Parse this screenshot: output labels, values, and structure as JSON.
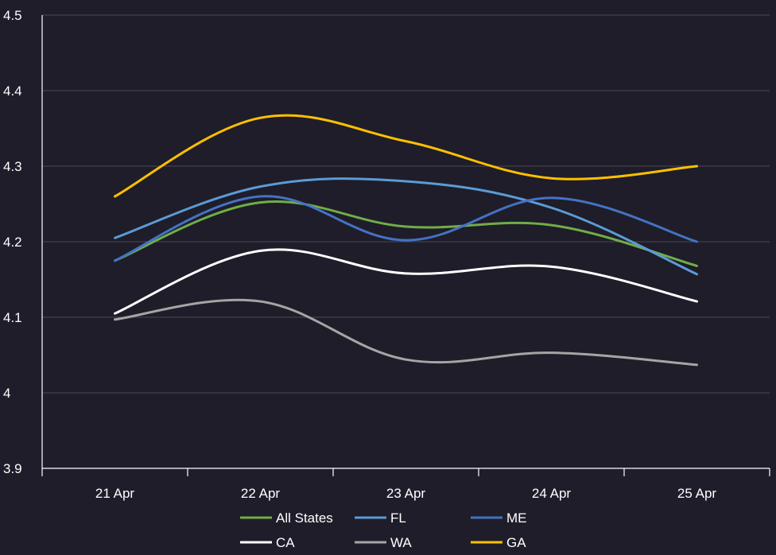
{
  "chart_data": {
    "type": "line",
    "categories": [
      "21 Apr",
      "22 Apr",
      "23 Apr",
      "24 Apr",
      "25 Apr"
    ],
    "ylim": [
      3.9,
      4.5
    ],
    "yticks": [
      3.9,
      4,
      4.1,
      4.2,
      4.3,
      4.4,
      4.5
    ],
    "ytick_labels": [
      "3.9",
      "4",
      "4.1",
      "4.2",
      "4.3",
      "4.4",
      "4.5"
    ],
    "grid": true,
    "legend_position": "bottom",
    "series": [
      {
        "name": "All States",
        "color": "#70ad47",
        "values": [
          4.175,
          4.252,
          4.22,
          4.222,
          4.168
        ]
      },
      {
        "name": "FL",
        "color": "#5b9bd5",
        "values": [
          4.205,
          4.273,
          4.28,
          4.245,
          4.157
        ]
      },
      {
        "name": "ME",
        "color": "#4472c4",
        "values": [
          4.175,
          4.26,
          4.202,
          4.258,
          4.2
        ]
      },
      {
        "name": "CA",
        "color": "#ffffff",
        "values": [
          4.105,
          4.188,
          4.158,
          4.167,
          4.121
        ]
      },
      {
        "name": "WA",
        "color": "#a5a5a5",
        "values": [
          4.097,
          4.121,
          4.044,
          4.053,
          4.037
        ]
      },
      {
        "name": "GA",
        "color": "#ffc000",
        "values": [
          4.26,
          4.364,
          4.333,
          4.284,
          4.3
        ]
      }
    ]
  }
}
